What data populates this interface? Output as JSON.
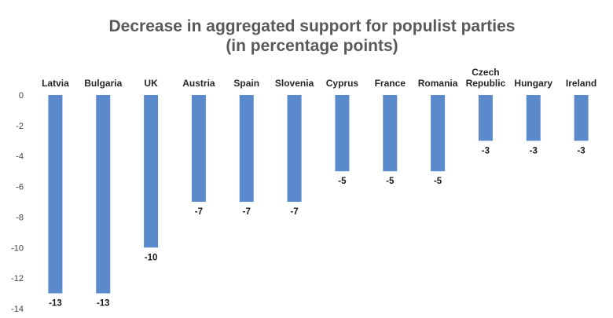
{
  "chart_data": {
    "type": "bar",
    "title": [
      "Decrease in aggregated support for populist parties",
      "(in percentage points)"
    ],
    "categories": [
      [
        "Latvia"
      ],
      [
        "Bulgaria"
      ],
      [
        "UK"
      ],
      [
        "Austria"
      ],
      [
        "Spain"
      ],
      [
        "Slovenia"
      ],
      [
        "Cyprus"
      ],
      [
        "France"
      ],
      [
        "Romania"
      ],
      [
        "Czech",
        "Republic"
      ],
      [
        "Hungary"
      ],
      [
        "Ireland"
      ]
    ],
    "values": [
      -13,
      -13,
      -10,
      -7,
      -7,
      -7,
      -5,
      -5,
      -5,
      -3,
      -3,
      -3
    ],
    "data_labels": [
      "-13",
      "-13",
      "-10",
      "-7",
      "-7",
      "-7",
      "-5",
      "-5",
      "-5",
      "-3",
      "-3",
      "-3"
    ],
    "ylim": [
      -14,
      0
    ],
    "yticks": [
      0,
      -2,
      -4,
      -6,
      -8,
      -10,
      -12,
      -14
    ],
    "ytick_labels": [
      "0",
      "-2",
      "-4",
      "-6",
      "-8",
      "-10",
      "-12",
      "-14"
    ],
    "grid": false,
    "category_labels_position": "top",
    "bar_color": "#5b8acc",
    "xlabel": "",
    "ylabel": ""
  }
}
